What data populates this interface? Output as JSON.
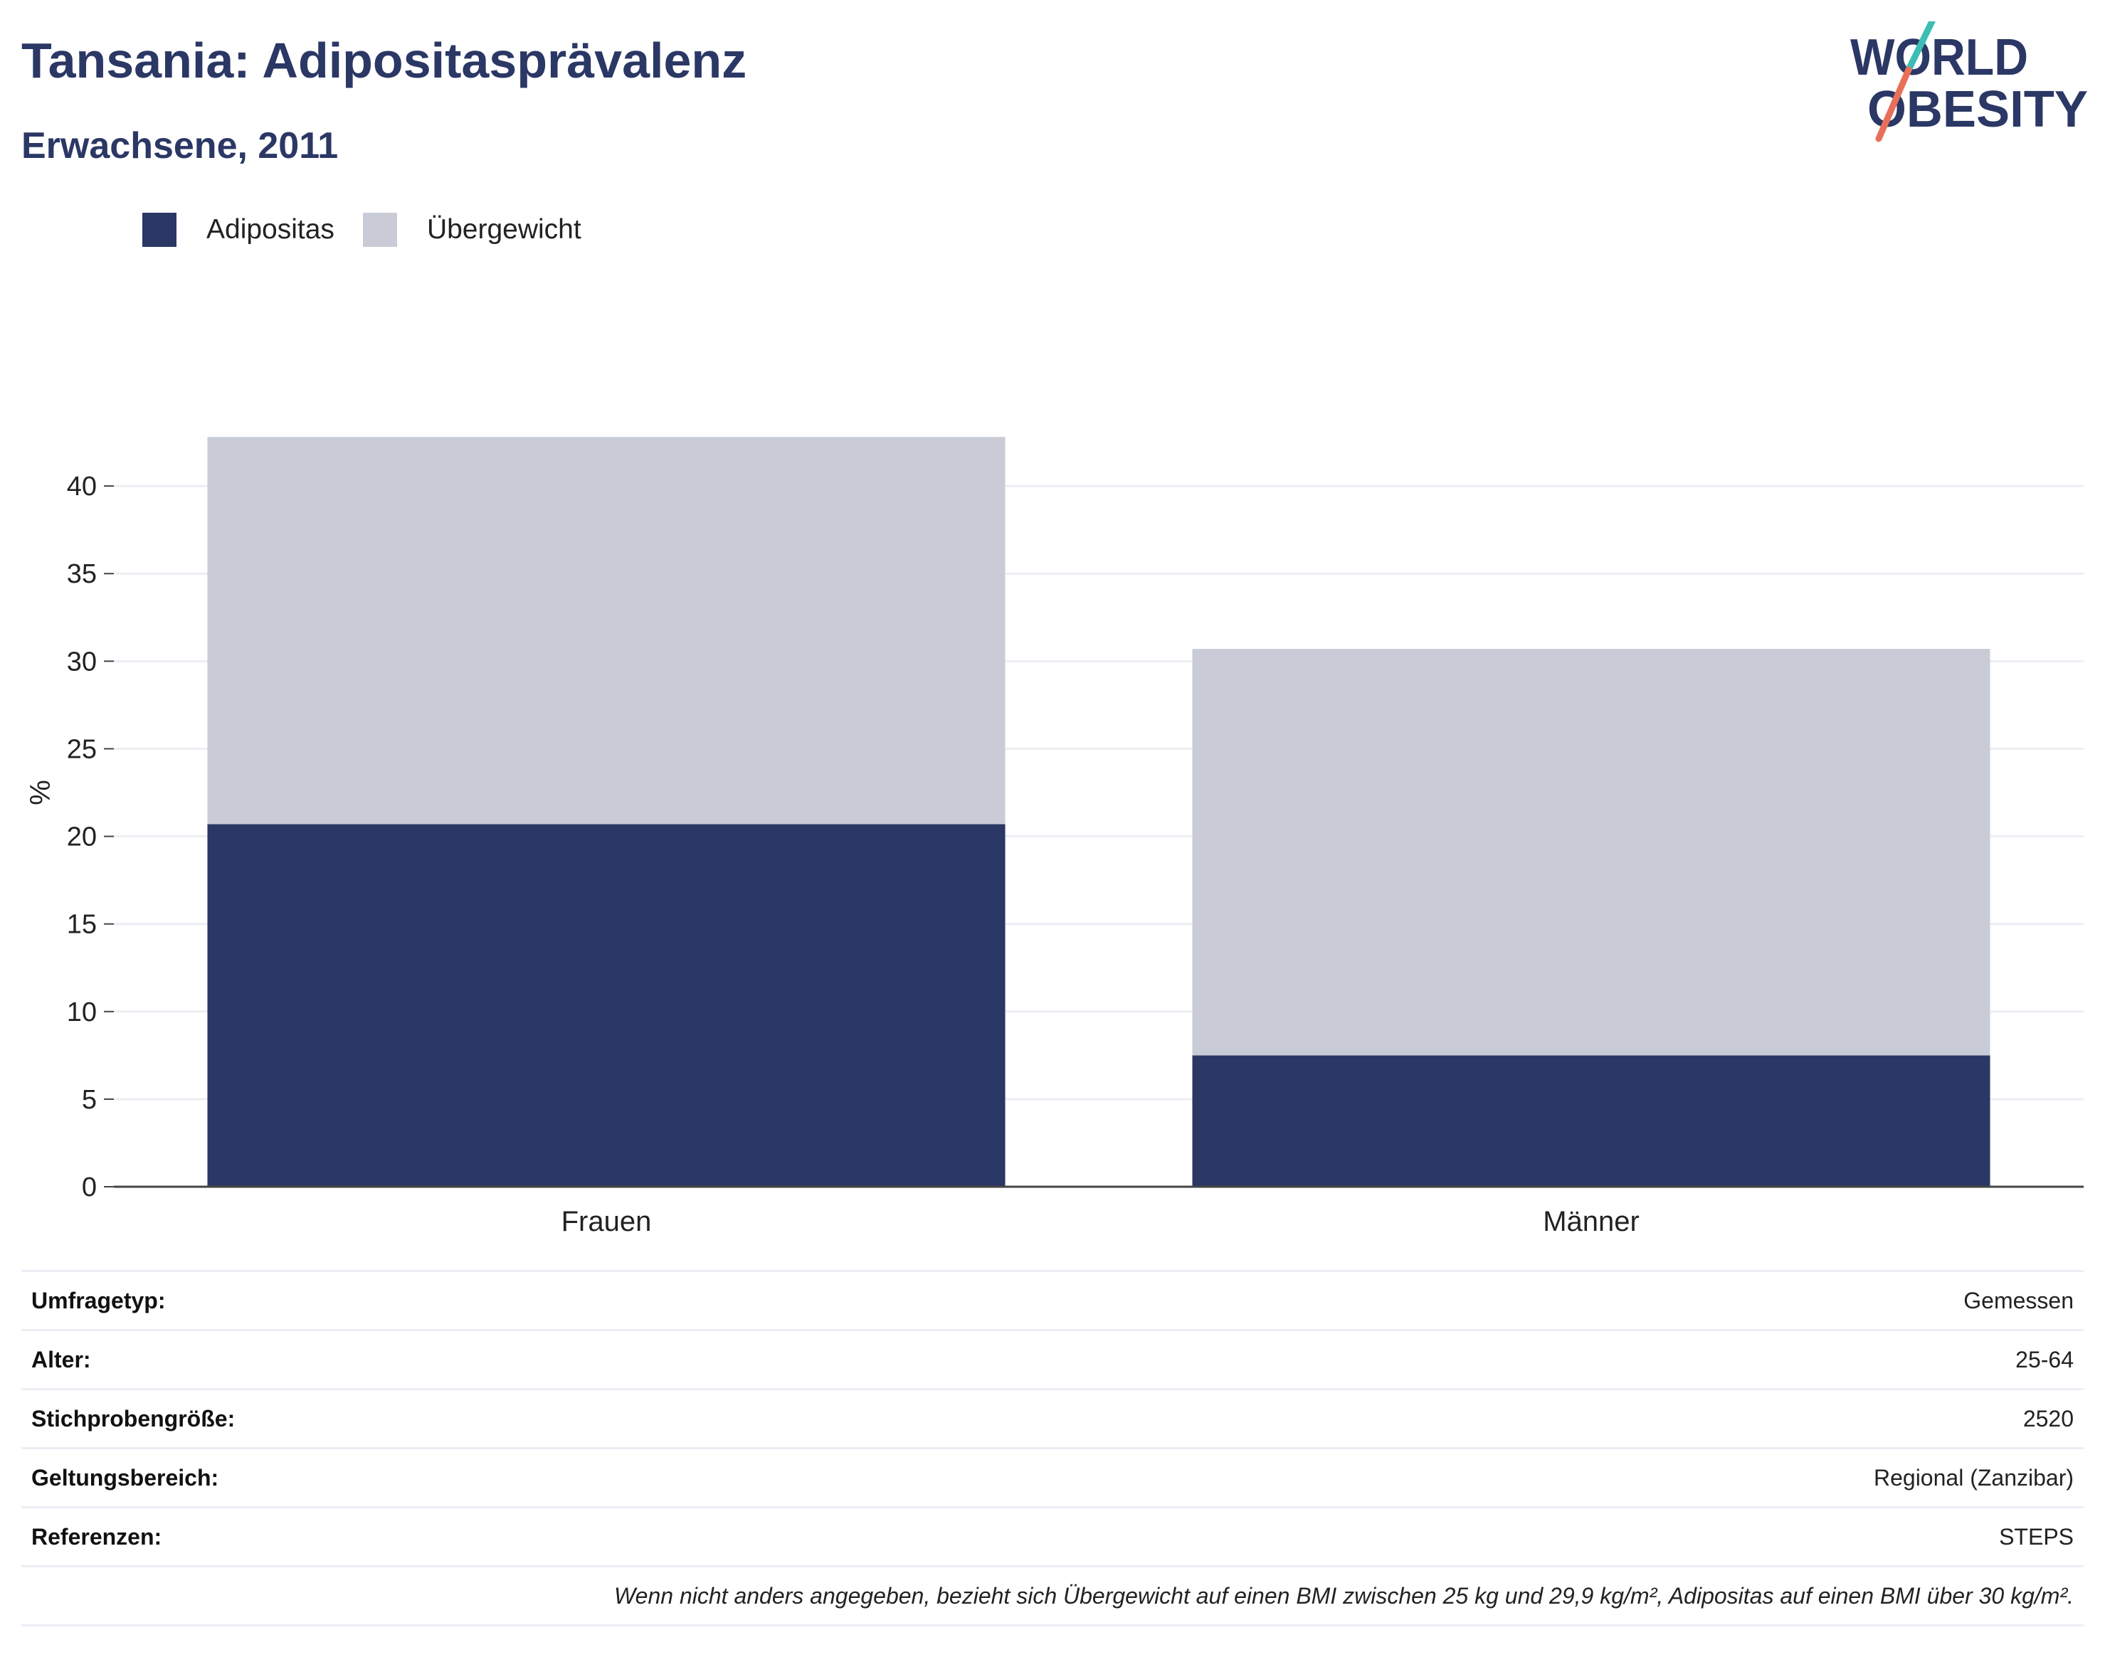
{
  "header": {
    "title": "Tansania: Adipositasprävalenz",
    "subtitle": "Erwachsene, 2011"
  },
  "logo": {
    "line1": "WORLD",
    "line2": "OBESITY",
    "colors": {
      "text": "#2b3764",
      "accent_top": "#3dbdb5",
      "accent_bottom": "#e8705a"
    }
  },
  "legend": {
    "items": [
      {
        "label": "Adipositas",
        "color": "#2b3764"
      },
      {
        "label": "Übergewicht",
        "color": "#c9ccd7"
      }
    ]
  },
  "chart_data": {
    "type": "bar",
    "stacked": true,
    "categories": [
      "Frauen",
      "Männer"
    ],
    "series": [
      {
        "name": "Adipositas",
        "color": "#2b3764",
        "values": [
          20.7,
          7.5
        ]
      },
      {
        "name": "Übergewicht",
        "color": "#c9ccd7",
        "values": [
          22.1,
          23.2
        ]
      }
    ],
    "totals": [
      42.8,
      30.7
    ],
    "ylabel": "%",
    "xlabel": "",
    "ylim": [
      0,
      45
    ],
    "yticks": [
      0,
      5,
      10,
      15,
      20,
      25,
      30,
      35,
      40
    ],
    "grid": true,
    "legend_position": "top-left"
  },
  "info": {
    "rows": [
      {
        "key": "Umfragetyp:",
        "value": "Gemessen"
      },
      {
        "key": "Alter:",
        "value": "25-64"
      },
      {
        "key": "Stichprobengröße:",
        "value": "2520"
      },
      {
        "key": "Geltungsbereich:",
        "value": "Regional (Zanzibar)"
      },
      {
        "key": "Referenzen:",
        "value": "STEPS"
      }
    ],
    "footnote": "Wenn nicht anders angegeben, bezieht sich Übergewicht auf einen BMI zwischen 25 kg und 29,9 kg/m², Adipositas auf einen BMI über 30 kg/m²."
  }
}
